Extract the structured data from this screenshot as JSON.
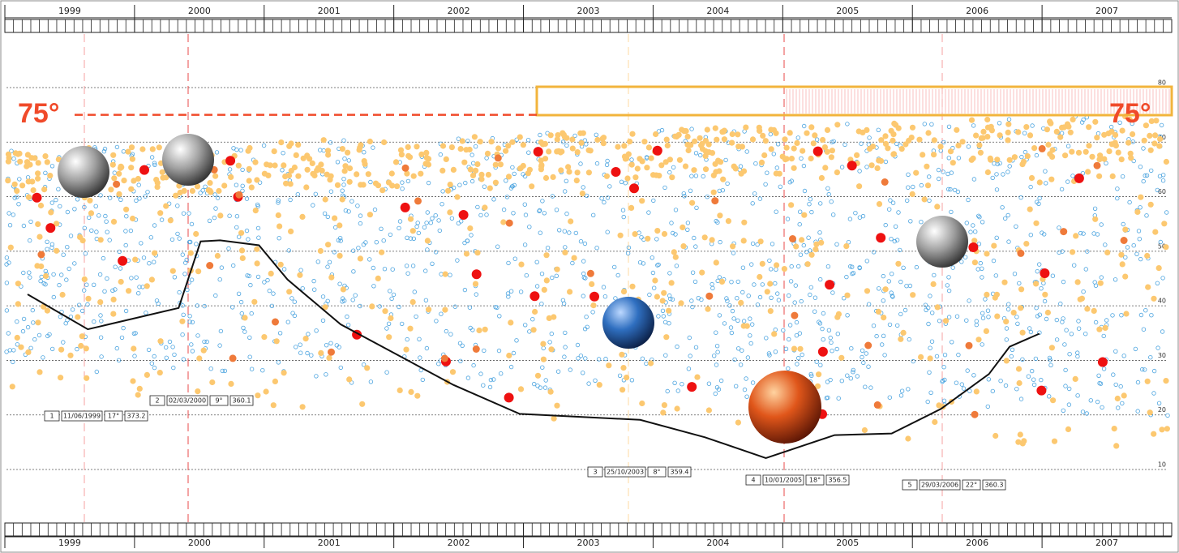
{
  "chart_data": {
    "type": "line",
    "categories": [
      "1999",
      "2000",
      "2001",
      "2002",
      "2003",
      "2004",
      "2005",
      "2006",
      "2007"
    ],
    "xlim": [
      1999,
      2008
    ],
    "ylim": [
      10,
      80
    ],
    "yticks": [
      10,
      20,
      30,
      40,
      50,
      60,
      70,
      80
    ],
    "grid": true,
    "threshold": {
      "value": 75,
      "label": "75°"
    },
    "series": [
      {
        "color": "#111111",
        "x": [
          1999.175,
          1999.64,
          2000.34,
          2000.51,
          2000.66,
          2000.96,
          2001.18,
          2001.59,
          2002.46,
          2002.97,
          2003.9,
          2004.4,
          2004.87,
          2005.4,
          2005.84,
          2006.22,
          2006.59,
          2006.75,
          2006.98
        ],
        "values": [
          42.1,
          35.7,
          39.6,
          51.8,
          52.0,
          51.1,
          44.8,
          36.6,
          25.5,
          20.2,
          19.1,
          15.9,
          12.1,
          16.3,
          16.6,
          21.1,
          27.5,
          32.5,
          34.9
        ]
      }
    ]
  },
  "events": [
    {
      "number": "1",
      "date": "11/06/1999",
      "angle": "17°",
      "value": "373.2"
    },
    {
      "number": "2",
      "date": "02/03/2000",
      "angle": "9°",
      "value": "360.1"
    },
    {
      "number": "3",
      "date": "25/10/2003",
      "angle": "8°",
      "value": "359.4"
    },
    {
      "number": "4",
      "date": "10/01/2005",
      "angle": "18°",
      "value": "356.5"
    },
    {
      "number": "5",
      "date": "29/03/2006",
      "angle": "22°",
      "value": "360.3"
    }
  ]
}
